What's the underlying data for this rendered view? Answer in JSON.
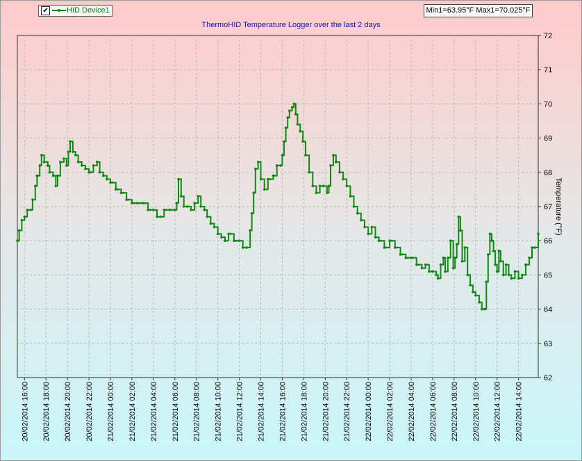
{
  "legend": {
    "checked_glyph": "✔",
    "series_name": "HID Device1"
  },
  "minmax_label": "Min1=63.95°F Max1=70.025°F",
  "colors": {
    "series": "#118811",
    "grid": "#b8b8b8"
  },
  "chart_data": {
    "type": "line",
    "title": "ThermoHID Temperature Logger over the last 2 days",
    "ylabel": "Temperature (°F)",
    "ylim": [
      62,
      72
    ],
    "y_axis_side": "right",
    "yticks": [
      62,
      63,
      64,
      65,
      66,
      67,
      68,
      69,
      70,
      71,
      72
    ],
    "grid": true,
    "legend_position": "top-left",
    "xlim": [
      "20/02/2014 15:20",
      "22/02/2014 15:50"
    ],
    "xtick_labels": [
      "20/02/2014 16:00",
      "20/02/2014 18:00",
      "20/02/2014 20:00",
      "20/02/2014 22:00",
      "21/02/2014 00:00",
      "21/02/2014 02:00",
      "21/02/2014 04:00",
      "21/02/2014 06:00",
      "21/02/2014 08:00",
      "21/02/2014 10:00",
      "21/02/2014 12:00",
      "21/02/2014 14:00",
      "21/02/2014 16:00",
      "21/02/2014 18:00",
      "21/02/2014 20:00",
      "21/02/2014 22:00",
      "22/02/2014 00:00",
      "22/02/2014 02:00",
      "22/02/2014 04:00",
      "22/02/2014 06:00",
      "22/02/2014 08:00",
      "22/02/2014 10:00",
      "22/02/2014 12:00",
      "22/02/2014 14:00"
    ],
    "series": [
      {
        "name": "HID Device1",
        "points": [
          [
            "20/02/2014 15:20",
            66.0
          ],
          [
            "20/02/2014 15:30",
            66.3
          ],
          [
            "20/02/2014 15:45",
            66.6
          ],
          [
            "20/02/2014 16:00",
            66.7
          ],
          [
            "20/02/2014 16:15",
            66.9
          ],
          [
            "20/02/2014 16:35",
            66.9
          ],
          [
            "20/02/2014 16:45",
            67.2
          ],
          [
            "20/02/2014 17:00",
            67.6
          ],
          [
            "20/02/2014 17:10",
            67.9
          ],
          [
            "20/02/2014 17:25",
            68.2
          ],
          [
            "20/02/2014 17:35",
            68.5
          ],
          [
            "20/02/2014 17:50",
            68.3
          ],
          [
            "20/02/2014 18:10",
            68.2
          ],
          [
            "20/02/2014 18:20",
            68.0
          ],
          [
            "20/02/2014 18:40",
            67.9
          ],
          [
            "20/02/2014 18:55",
            67.6
          ],
          [
            "20/02/2014 19:05",
            67.9
          ],
          [
            "20/02/2014 19:20",
            68.3
          ],
          [
            "20/02/2014 19:40",
            68.4
          ],
          [
            "20/02/2014 19:55",
            68.2
          ],
          [
            "20/02/2014 20:05",
            68.6
          ],
          [
            "20/02/2014 20:15",
            68.9
          ],
          [
            "20/02/2014 20:30",
            68.6
          ],
          [
            "20/02/2014 20:45",
            68.5
          ],
          [
            "20/02/2014 21:00",
            68.3
          ],
          [
            "20/02/2014 21:20",
            68.2
          ],
          [
            "20/02/2014 21:40",
            68.1
          ],
          [
            "20/02/2014 22:00",
            68.0
          ],
          [
            "20/02/2014 22:25",
            68.2
          ],
          [
            "20/02/2014 22:45",
            68.3
          ],
          [
            "20/02/2014 23:00",
            68.0
          ],
          [
            "20/02/2014 23:20",
            67.9
          ],
          [
            "20/02/2014 23:40",
            67.8
          ],
          [
            "21/02/2014 00:00",
            67.7
          ],
          [
            "21/02/2014 00:30",
            67.5
          ],
          [
            "21/02/2014 01:00",
            67.4
          ],
          [
            "21/02/2014 01:30",
            67.2
          ],
          [
            "21/02/2014 02:00",
            67.1
          ],
          [
            "21/02/2014 02:30",
            67.1
          ],
          [
            "21/02/2014 03:00",
            67.1
          ],
          [
            "21/02/2014 03:30",
            66.9
          ],
          [
            "21/02/2014 04:00",
            66.9
          ],
          [
            "21/02/2014 04:20",
            66.7
          ],
          [
            "21/02/2014 04:40",
            66.7
          ],
          [
            "21/02/2014 05:00",
            66.9
          ],
          [
            "21/02/2014 05:30",
            66.9
          ],
          [
            "21/02/2014 06:00",
            66.9
          ],
          [
            "21/02/2014 06:10",
            67.1
          ],
          [
            "21/02/2014 06:20",
            67.8
          ],
          [
            "21/02/2014 06:35",
            67.3
          ],
          [
            "21/02/2014 06:50",
            67.0
          ],
          [
            "21/02/2014 07:10",
            67.0
          ],
          [
            "21/02/2014 07:30",
            66.9
          ],
          [
            "21/02/2014 07:50",
            67.1
          ],
          [
            "21/02/2014 08:10",
            67.3
          ],
          [
            "21/02/2014 08:25",
            67.0
          ],
          [
            "21/02/2014 08:45",
            66.9
          ],
          [
            "21/02/2014 09:00",
            66.7
          ],
          [
            "21/02/2014 09:20",
            66.5
          ],
          [
            "21/02/2014 09:40",
            66.4
          ],
          [
            "21/02/2014 10:00",
            66.2
          ],
          [
            "21/02/2014 10:20",
            66.1
          ],
          [
            "21/02/2014 10:40",
            66.0
          ],
          [
            "21/02/2014 11:00",
            66.2
          ],
          [
            "21/02/2014 11:30",
            66.0
          ],
          [
            "21/02/2014 12:00",
            66.0
          ],
          [
            "21/02/2014 12:20",
            65.8
          ],
          [
            "21/02/2014 12:40",
            65.8
          ],
          [
            "21/02/2014 13:00",
            66.3
          ],
          [
            "21/02/2014 13:10",
            66.8
          ],
          [
            "21/02/2014 13:20",
            67.4
          ],
          [
            "21/02/2014 13:30",
            68.1
          ],
          [
            "21/02/2014 13:45",
            68.3
          ],
          [
            "21/02/2014 14:00",
            67.8
          ],
          [
            "21/02/2014 14:20",
            67.5
          ],
          [
            "21/02/2014 14:40",
            67.8
          ],
          [
            "21/02/2014 15:10",
            67.9
          ],
          [
            "21/02/2014 15:30",
            68.2
          ],
          [
            "21/02/2014 15:50",
            68.2
          ],
          [
            "21/02/2014 16:00",
            68.5
          ],
          [
            "21/02/2014 16:10",
            68.9
          ],
          [
            "21/02/2014 16:20",
            69.3
          ],
          [
            "21/02/2014 16:30",
            69.6
          ],
          [
            "21/02/2014 16:40",
            69.8
          ],
          [
            "21/02/2014 16:55",
            69.9
          ],
          [
            "21/02/2014 17:05",
            70.0
          ],
          [
            "21/02/2014 17:15",
            69.7
          ],
          [
            "21/02/2014 17:25",
            69.4
          ],
          [
            "21/02/2014 17:40",
            69.2
          ],
          [
            "21/02/2014 17:55",
            68.9
          ],
          [
            "21/02/2014 18:10",
            68.5
          ],
          [
            "21/02/2014 18:30",
            68.0
          ],
          [
            "21/02/2014 18:50",
            67.6
          ],
          [
            "21/02/2014 19:10",
            67.4
          ],
          [
            "21/02/2014 19:30",
            67.6
          ],
          [
            "21/02/2014 19:50",
            67.6
          ],
          [
            "21/02/2014 20:10",
            67.4
          ],
          [
            "21/02/2014 20:20",
            67.6
          ],
          [
            "21/02/2014 20:30",
            68.2
          ],
          [
            "21/02/2014 20:45",
            68.5
          ],
          [
            "21/02/2014 21:00",
            68.3
          ],
          [
            "21/02/2014 21:20",
            68.0
          ],
          [
            "21/02/2014 21:40",
            67.8
          ],
          [
            "21/02/2014 22:00",
            67.6
          ],
          [
            "21/02/2014 22:20",
            67.3
          ],
          [
            "21/02/2014 22:40",
            67.0
          ],
          [
            "21/02/2014 23:00",
            66.8
          ],
          [
            "21/02/2014 23:20",
            66.6
          ],
          [
            "21/02/2014 23:40",
            66.4
          ],
          [
            "22/02/2014 00:00",
            66.2
          ],
          [
            "22/02/2014 00:20",
            66.4
          ],
          [
            "22/02/2014 00:40",
            66.1
          ],
          [
            "22/02/2014 01:00",
            66.0
          ],
          [
            "22/02/2014 01:30",
            65.8
          ],
          [
            "22/02/2014 02:00",
            66.0
          ],
          [
            "22/02/2014 02:30",
            65.8
          ],
          [
            "22/02/2014 03:00",
            65.6
          ],
          [
            "22/02/2014 03:30",
            65.5
          ],
          [
            "22/02/2014 04:00",
            65.5
          ],
          [
            "22/02/2014 04:30",
            65.3
          ],
          [
            "22/02/2014 05:00",
            65.2
          ],
          [
            "22/02/2014 05:20",
            65.3
          ],
          [
            "22/02/2014 05:40",
            65.1
          ],
          [
            "22/02/2014 06:00",
            65.1
          ],
          [
            "22/02/2014 06:20",
            65.0
          ],
          [
            "22/02/2014 06:30",
            64.9
          ],
          [
            "22/02/2014 06:45",
            65.3
          ],
          [
            "22/02/2014 07:00",
            65.5
          ],
          [
            "22/02/2014 07:10",
            65.1
          ],
          [
            "22/02/2014 07:25",
            65.5
          ],
          [
            "22/02/2014 07:40",
            66.0
          ],
          [
            "22/02/2014 07:55",
            65.2
          ],
          [
            "22/02/2014 08:05",
            65.5
          ],
          [
            "22/02/2014 08:15",
            65.9
          ],
          [
            "22/02/2014 08:25",
            66.7
          ],
          [
            "22/02/2014 08:35",
            66.3
          ],
          [
            "22/02/2014 08:45",
            65.4
          ],
          [
            "22/02/2014 09:00",
            65.8
          ],
          [
            "22/02/2014 09:15",
            65.0
          ],
          [
            "22/02/2014 09:30",
            64.7
          ],
          [
            "22/02/2014 09:45",
            64.5
          ],
          [
            "22/02/2014 10:00",
            64.4
          ],
          [
            "22/02/2014 10:20",
            64.2
          ],
          [
            "22/02/2014 10:35",
            64.0
          ],
          [
            "22/02/2014 10:50",
            64.0
          ],
          [
            "22/02/2014 11:00",
            64.8
          ],
          [
            "22/02/2014 11:10",
            65.6
          ],
          [
            "22/02/2014 11:20",
            66.2
          ],
          [
            "22/02/2014 11:30",
            66.0
          ],
          [
            "22/02/2014 11:40",
            65.7
          ],
          [
            "22/02/2014 11:50",
            65.3
          ],
          [
            "22/02/2014 12:00",
            65.1
          ],
          [
            "22/02/2014 12:10",
            65.7
          ],
          [
            "22/02/2014 12:20",
            65.4
          ],
          [
            "22/02/2014 12:35",
            65.0
          ],
          [
            "22/02/2014 12:50",
            65.3
          ],
          [
            "22/02/2014 13:05",
            65.0
          ],
          [
            "22/02/2014 13:20",
            64.9
          ],
          [
            "22/02/2014 13:40",
            65.1
          ],
          [
            "22/02/2014 14:00",
            64.9
          ],
          [
            "22/02/2014 14:20",
            65.0
          ],
          [
            "22/02/2014 14:40",
            65.3
          ],
          [
            "22/02/2014 15:00",
            65.5
          ],
          [
            "22/02/2014 15:15",
            65.8
          ],
          [
            "22/02/2014 15:30",
            65.8
          ],
          [
            "22/02/2014 15:50",
            66.2
          ]
        ]
      }
    ]
  }
}
